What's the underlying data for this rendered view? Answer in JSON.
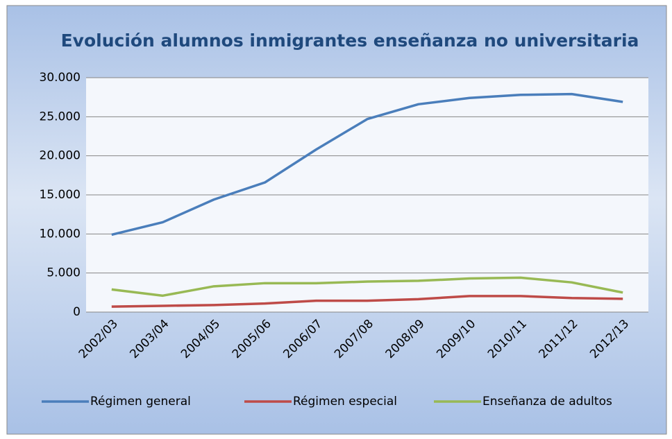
{
  "chart_data": {
    "type": "line",
    "title": "Evolución alumnos inmigrantes enseñanza no universitaria",
    "categories": [
      "2002/03",
      "2003/04",
      "2004/05",
      "2005/06",
      "2006/07",
      "2007/08",
      "2008/09",
      "2009/10",
      "2010/11",
      "2011/12",
      "2012/13"
    ],
    "series": [
      {
        "name": "Régimen general",
        "color": "#4a7ebb",
        "values": [
          9900,
          11500,
          14400,
          16600,
          20800,
          24700,
          26600,
          27400,
          27800,
          27900,
          26900
        ]
      },
      {
        "name": "Régimen especial",
        "color": "#be4b48",
        "values": [
          700,
          800,
          900,
          1100,
          1450,
          1450,
          1650,
          2050,
          2050,
          1800,
          1700
        ]
      },
      {
        "name": "Enseñanza de adultos",
        "color": "#98b954",
        "values": [
          2900,
          2100,
          3300,
          3700,
          3700,
          3900,
          4000,
          4300,
          4400,
          3800,
          2500
        ]
      }
    ],
    "ylim": [
      0,
      30000
    ],
    "yticks": [
      0,
      {
        "value": 5000,
        "label": "5.000"
      },
      {
        "value": 10000,
        "label": "10.000"
      },
      {
        "value": 15000,
        "label": "15.000"
      },
      {
        "value": 20000,
        "label": "20.000"
      },
      {
        "value": 25000,
        "label": "25.000"
      },
      {
        "value": 30000,
        "label": "30.000"
      }
    ],
    "grid": true,
    "legend": "bottom"
  }
}
